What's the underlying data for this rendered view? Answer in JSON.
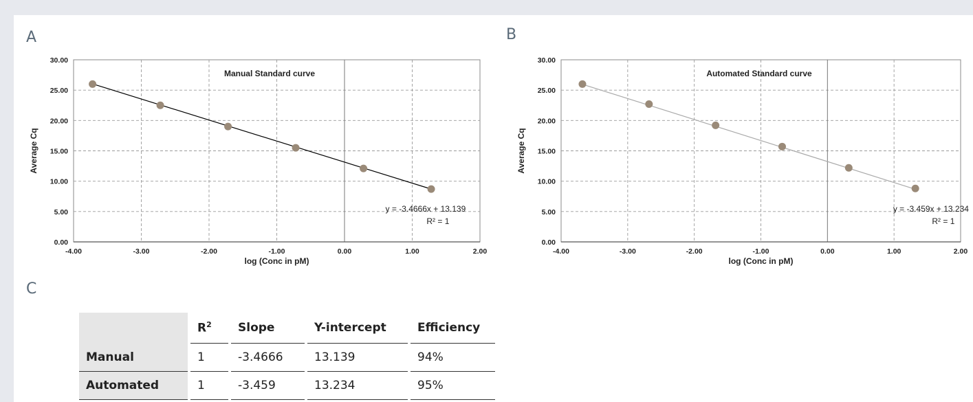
{
  "panels": {
    "a": "A",
    "b": "B",
    "c": "C"
  },
  "chart_data": [
    {
      "type": "scatter",
      "panel": "A",
      "title": "Manual Standard curve",
      "xlabel": "log (Conc in pM)",
      "ylabel": "Average Cq",
      "xlim": [
        -4,
        2
      ],
      "ylim": [
        0,
        30
      ],
      "x_ticks": [
        "-4.00",
        "-3.00",
        "-2.00",
        "-1.00",
        "0.00",
        "1.00",
        "2.00"
      ],
      "y_ticks": [
        "0.00",
        "5.00",
        "10.00",
        "15.00",
        "20.00",
        "25.00",
        "30.00"
      ],
      "grid": true,
      "series": [
        {
          "x": [
            -3.72,
            -2.72,
            -1.72,
            -0.72,
            0.28,
            1.28
          ],
          "y": [
            26.0,
            22.5,
            19.0,
            15.5,
            12.1,
            8.7
          ]
        }
      ],
      "trendline": {
        "slope": -3.4666,
        "intercept": 13.139
      },
      "equation": "y = -3.4666x + 13.139",
      "r2_label": "R² = 1",
      "point_color": "#9a8a78",
      "line_color": "#000000"
    },
    {
      "type": "scatter",
      "panel": "B",
      "title": "Automated Standard curve",
      "xlabel": "log (Conc in pM)",
      "ylabel": "Average Cq",
      "xlim": [
        -4,
        2
      ],
      "ylim": [
        0,
        30
      ],
      "x_ticks": [
        "-4.00",
        "-3.00",
        "-2.00",
        "-1.00",
        "0.00",
        "1.00",
        "2.00"
      ],
      "y_ticks": [
        "0.00",
        "5.00",
        "10.00",
        "15.00",
        "20.00",
        "25.00",
        "30.00"
      ],
      "grid": true,
      "series": [
        {
          "x": [
            -3.68,
            -2.68,
            -1.68,
            -0.68,
            0.32,
            1.32
          ],
          "y": [
            26.0,
            22.7,
            19.2,
            15.7,
            12.2,
            8.8
          ]
        }
      ],
      "trendline": {
        "slope": -3.459,
        "intercept": 13.234
      },
      "equation": "y = -3.459x + 13.234",
      "r2_label": "R² = 1",
      "point_color": "#9a8a78",
      "line_color": "#aaaaaa"
    }
  ],
  "table": {
    "header": {
      "r2": "R",
      "r2_sup": "2",
      "slope": "Slope",
      "yint": "Y-intercept",
      "eff": "Efficiency"
    },
    "rows": [
      {
        "label": "Manual",
        "r2": "1",
        "slope": "-3.4666",
        "yint": "13.139",
        "eff": "94%"
      },
      {
        "label": "Automated",
        "r2": "1",
        "slope": "-3.459",
        "yint": "13.234",
        "eff": "95%"
      }
    ]
  }
}
